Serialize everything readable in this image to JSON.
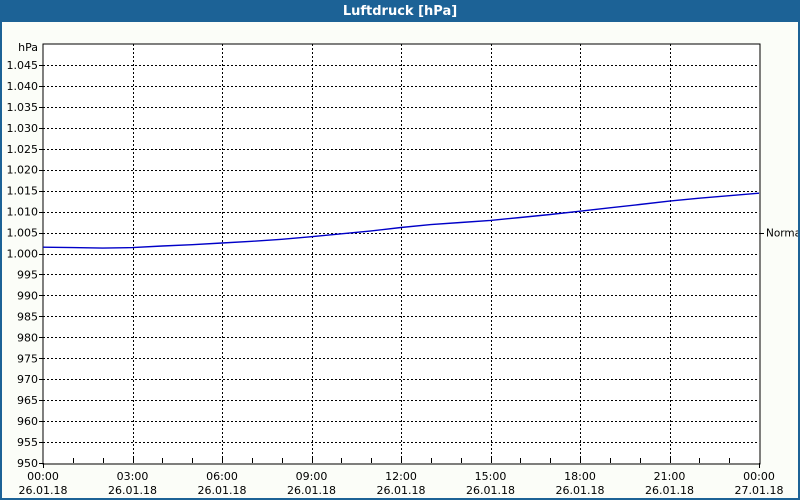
{
  "window": {
    "title": "Luftdruck [hPa]"
  },
  "colors": {
    "titlebar_bg": "#1C6296",
    "titlebar_text": "#FFFFFF",
    "window_border": "#1C6296",
    "background": "#FBFDF8",
    "plot_background": "#FFFFFF",
    "axis": "#000000",
    "grid": "#000000",
    "text": "#000000",
    "series_line": "#0000C8"
  },
  "chart_data": {
    "type": "line",
    "title": "Luftdruck [hPa]",
    "unit_label": "hPa",
    "ylim": [
      950,
      1050
    ],
    "grid_style": "dashed",
    "legend": "none",
    "yticks": [
      {
        "value": 1045,
        "label": "1.045"
      },
      {
        "value": 1040,
        "label": "1.040"
      },
      {
        "value": 1035,
        "label": "1.035"
      },
      {
        "value": 1030,
        "label": "1.030"
      },
      {
        "value": 1025,
        "label": "1.025"
      },
      {
        "value": 1020,
        "label": "1.020"
      },
      {
        "value": 1015,
        "label": "1.015"
      },
      {
        "value": 1010,
        "label": "1.010"
      },
      {
        "value": 1005,
        "label": "1.005"
      },
      {
        "value": 1000,
        "label": "1.000"
      },
      {
        "value": 995,
        "label": "995"
      },
      {
        "value": 990,
        "label": "990"
      },
      {
        "value": 985,
        "label": "985"
      },
      {
        "value": 980,
        "label": "980"
      },
      {
        "value": 975,
        "label": "975"
      },
      {
        "value": 970,
        "label": "970"
      },
      {
        "value": 965,
        "label": "965"
      },
      {
        "value": 960,
        "label": "960"
      },
      {
        "value": 955,
        "label": "955"
      },
      {
        "value": 950,
        "label": "950"
      }
    ],
    "x_axis": {
      "hours_span": 24,
      "minor_tick_every_hours": 1,
      "gridline_every_hours": 3,
      "ticks": [
        {
          "hour": 0,
          "time": "00:00",
          "date": "26.01.18"
        },
        {
          "hour": 3,
          "time": "03:00",
          "date": "26.01.18"
        },
        {
          "hour": 6,
          "time": "06:00",
          "date": "26.01.18"
        },
        {
          "hour": 9,
          "time": "09:00",
          "date": "26.01.18"
        },
        {
          "hour": 12,
          "time": "12:00",
          "date": "26.01.18"
        },
        {
          "hour": 15,
          "time": "15:00",
          "date": "26.01.18"
        },
        {
          "hour": 18,
          "time": "18:00",
          "date": "26.01.18"
        },
        {
          "hour": 21,
          "time": "21:00",
          "date": "26.01.18"
        },
        {
          "hour": 24,
          "time": "00:00",
          "date": "27.01.18"
        }
      ]
    },
    "right_marker": {
      "label": "Normal",
      "value": 1005
    },
    "series": [
      {
        "name": "Luftdruck",
        "color": "#0000C8",
        "points": [
          {
            "hour": 0,
            "hPa": 1001.5
          },
          {
            "hour": 1,
            "hPa": 1001.4
          },
          {
            "hour": 2,
            "hPa": 1001.3
          },
          {
            "hour": 3,
            "hPa": 1001.4
          },
          {
            "hour": 4,
            "hPa": 1001.8
          },
          {
            "hour": 5,
            "hPa": 1002.1
          },
          {
            "hour": 6,
            "hPa": 1002.5
          },
          {
            "hour": 7,
            "hPa": 1002.9
          },
          {
            "hour": 8,
            "hPa": 1003.4
          },
          {
            "hour": 9,
            "hPa": 1004.0
          },
          {
            "hour": 10,
            "hPa": 1004.7
          },
          {
            "hour": 11,
            "hPa": 1005.4
          },
          {
            "hour": 12,
            "hPa": 1006.2
          },
          {
            "hour": 13,
            "hPa": 1006.9
          },
          {
            "hour": 14,
            "hPa": 1007.4
          },
          {
            "hour": 15,
            "hPa": 1007.9
          },
          {
            "hour": 16,
            "hPa": 1008.6
          },
          {
            "hour": 17,
            "hPa": 1009.3
          },
          {
            "hour": 18,
            "hPa": 1010.1
          },
          {
            "hour": 19,
            "hPa": 1010.9
          },
          {
            "hour": 20,
            "hPa": 1011.7
          },
          {
            "hour": 21,
            "hPa": 1012.5
          },
          {
            "hour": 22,
            "hPa": 1013.2
          },
          {
            "hour": 23,
            "hPa": 1013.8
          },
          {
            "hour": 24,
            "hPa": 1014.4
          }
        ]
      }
    ]
  }
}
